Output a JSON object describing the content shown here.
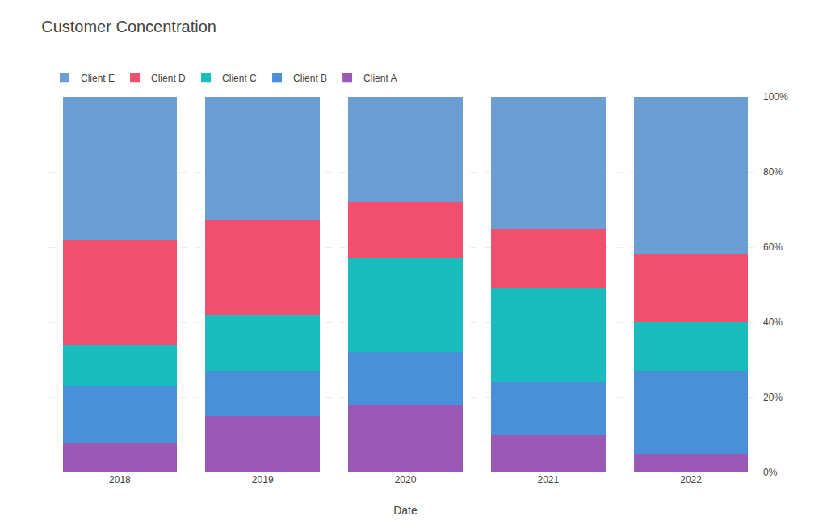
{
  "chart_data": {
    "type": "bar",
    "title": "Customer Concentration",
    "x_label": "Date",
    "categories": [
      "2018",
      "2019",
      "2020",
      "2021",
      "2022"
    ],
    "series": [
      {
        "name": "Client A",
        "color": "#9b59b6",
        "values": [
          8,
          15,
          18,
          10,
          5
        ]
      },
      {
        "name": "Client B",
        "color": "#4a90d9",
        "values": [
          15,
          12,
          14,
          14,
          22
        ]
      },
      {
        "name": "Client C",
        "color": "#1abcbd",
        "values": [
          11,
          15,
          25,
          25,
          13
        ]
      },
      {
        "name": "Client D",
        "color": "#f0506e",
        "values": [
          28,
          25,
          15,
          16,
          18
        ]
      },
      {
        "name": "Client E",
        "color": "#6b9fd4",
        "values": [
          38,
          33,
          28,
          35,
          42
        ]
      }
    ],
    "stacked": true,
    "ylim": [
      0,
      100
    ],
    "yticks": [
      {
        "value": 0,
        "label": "0%"
      },
      {
        "value": 20,
        "label": "20%"
      },
      {
        "value": 40,
        "label": "40%"
      },
      {
        "value": 60,
        "label": "60%"
      },
      {
        "value": 80,
        "label": "80%"
      },
      {
        "value": 100,
        "label": "100%"
      }
    ],
    "grid": true,
    "legend": "top"
  }
}
